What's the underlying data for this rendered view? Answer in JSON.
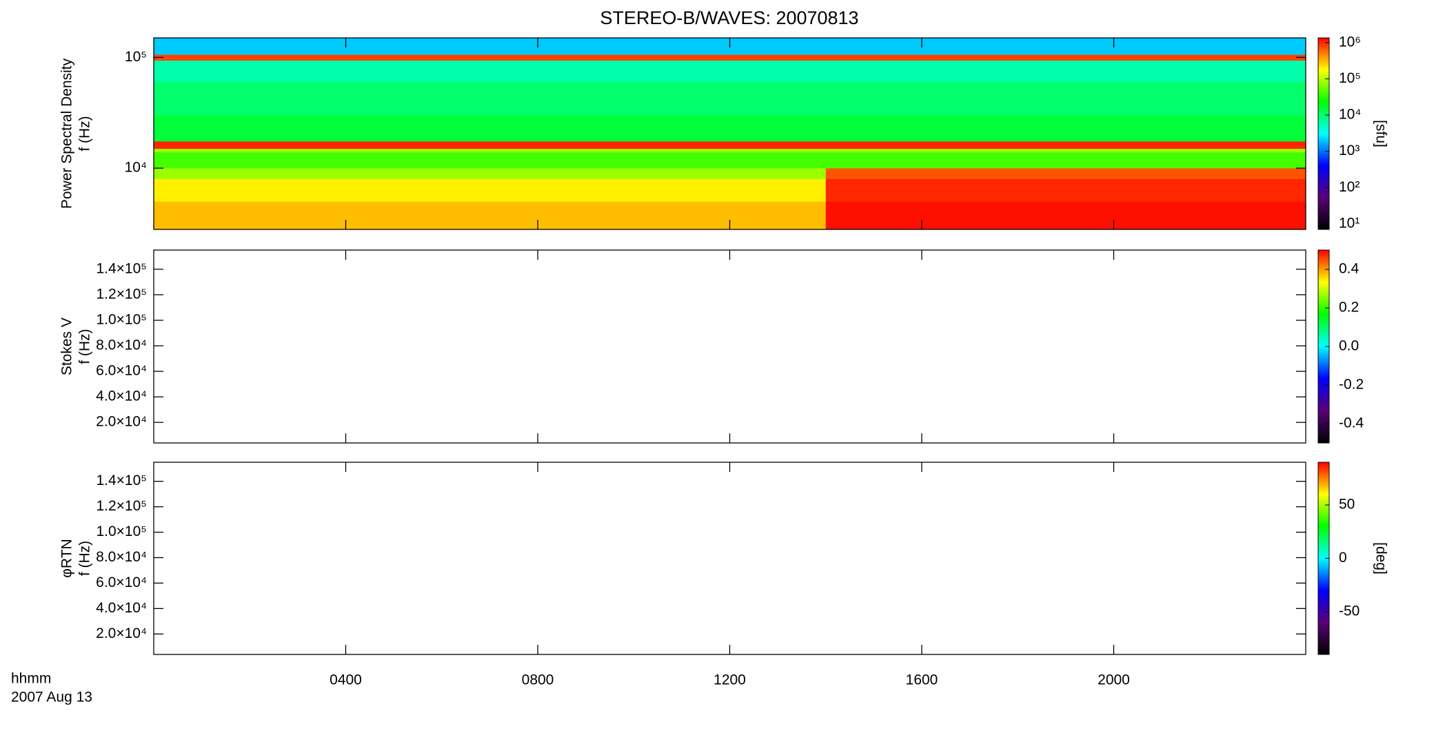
{
  "title": "STEREO-B/WAVES: 20070813",
  "time_label": "hhmm",
  "date_label": "2007 Aug 13",
  "colormap": [
    "#000000",
    "#5a0078",
    "#0000ff",
    "#00ffff",
    "#00ff00",
    "#ffff00",
    "#ff0000"
  ],
  "chart_data": [
    {
      "type": "heatmap",
      "ylabel": [
        "Power Spectral Density",
        "f (Hz)"
      ],
      "ylog": true,
      "ylim": [
        2800,
        150000
      ],
      "yticks": [
        {
          "value": 10000,
          "label": "10⁴"
        },
        {
          "value": 100000,
          "label": "10⁵"
        }
      ],
      "xlim": [
        0,
        24
      ],
      "xticks": [
        {
          "value": 4,
          "label": "0400"
        },
        {
          "value": 8,
          "label": "0800"
        },
        {
          "value": 12,
          "label": "1200"
        },
        {
          "value": 16,
          "label": "1600"
        },
        {
          "value": 20,
          "label": "2000"
        }
      ],
      "x_edges": [
        0,
        2,
        4,
        6,
        8,
        10,
        12,
        14,
        16,
        18,
        20,
        22,
        24
      ],
      "y_edges": [
        2800,
        5000,
        8000,
        10000,
        14000,
        15000,
        17500,
        30000,
        60000,
        94000,
        106000,
        150000
      ],
      "z": [
        [
          300000,
          300000,
          300000,
          300000,
          300000,
          300000,
          300000,
          1200000,
          1200000,
          1200000,
          1200000,
          1200000
        ],
        [
          200000,
          200000,
          200000,
          200000,
          200000,
          200000,
          200000,
          1000000,
          1000000,
          1000000,
          1000000,
          1000000
        ],
        [
          80000,
          80000,
          80000,
          80000,
          80000,
          80000,
          80000,
          700000,
          700000,
          700000,
          700000,
          700000
        ],
        [
          40000,
          40000,
          40000,
          40000,
          40000,
          40000,
          40000,
          40000,
          40000,
          40000,
          40000,
          40000
        ],
        [
          80000,
          80000,
          80000,
          80000,
          80000,
          80000,
          80000,
          80000,
          80000,
          80000,
          80000,
          80000
        ],
        [
          1000000,
          1000000,
          1000000,
          1000000,
          1000000,
          1000000,
          1000000,
          1000000,
          1000000,
          1000000,
          1000000,
          1000000
        ],
        [
          15000,
          15000,
          15000,
          15000,
          15000,
          15000,
          15000,
          15000,
          15000,
          15000,
          15000,
          15000
        ],
        [
          10000,
          10000,
          10000,
          10000,
          10000,
          10000,
          10000,
          10000,
          10000,
          10000,
          10000,
          10000
        ],
        [
          6000,
          6000,
          6000,
          6000,
          6000,
          6000,
          6000,
          6000,
          6000,
          6000,
          6000,
          6000
        ],
        [
          800000,
          800000,
          800000,
          800000,
          800000,
          800000,
          800000,
          800000,
          800000,
          800000,
          800000,
          800000
        ],
        [
          2000,
          2000,
          2000,
          2000,
          2000,
          2000,
          2000,
          2000,
          2000,
          2000,
          2000,
          2000
        ]
      ],
      "zlog": true,
      "zlim": [
        7,
        1350000
      ],
      "zticks": [
        {
          "value": 10,
          "label": "10¹"
        },
        {
          "value": 100,
          "label": "10²"
        },
        {
          "value": 1000,
          "label": "10³"
        },
        {
          "value": 10000,
          "label": "10⁴"
        },
        {
          "value": 100000,
          "label": "10⁵"
        },
        {
          "value": 1000000,
          "label": "10⁶"
        }
      ],
      "zlabel": "[sfu]"
    },
    {
      "type": "heatmap",
      "ylabel": [
        "Stokes V",
        "f (Hz)"
      ],
      "ylog": false,
      "ylim": [
        3900,
        155000
      ],
      "yticks": [
        {
          "value": 20000,
          "label": "2.0×10⁴"
        },
        {
          "value": 40000,
          "label": "4.0×10⁴"
        },
        {
          "value": 60000,
          "label": "6.0×10⁴"
        },
        {
          "value": 80000,
          "label": "8.0×10⁴"
        },
        {
          "value": 100000,
          "label": "1.0×10⁵"
        },
        {
          "value": 120000,
          "label": "1.2×10⁵"
        },
        {
          "value": 140000,
          "label": "1.4×10⁵"
        }
      ],
      "xlim": [
        0,
        24
      ],
      "xticks": [
        4,
        8,
        12,
        16,
        20
      ],
      "zlog": false,
      "zlim": [
        -0.5,
        0.5
      ],
      "zticks": [
        -0.4,
        -0.2,
        {
          "value": 0,
          "label": "0.0"
        },
        0.2,
        0.4
      ]
    },
    {
      "type": "heatmap",
      "ylabel": [
        "φRTN",
        "f (Hz)"
      ],
      "ylog": false,
      "ylim": [
        3900,
        155000
      ],
      "yticks": [
        {
          "value": 20000,
          "label": "2.0×10⁴"
        },
        {
          "value": 40000,
          "label": "4.0×10⁴"
        },
        {
          "value": 60000,
          "label": "6.0×10⁴"
        },
        {
          "value": 80000,
          "label": "8.0×10⁴"
        },
        {
          "value": 100000,
          "label": "1.0×10⁵"
        },
        {
          "value": 120000,
          "label": "1.2×10⁵"
        },
        {
          "value": 140000,
          "label": "1.4×10⁵"
        }
      ],
      "xlim": [
        0,
        24
      ],
      "xticks": [
        4,
        8,
        12,
        16,
        20
      ],
      "zlog": false,
      "zlim": [
        -90,
        90
      ],
      "zticks": [
        -50,
        0,
        50
      ],
      "zlabel": "[deg]"
    }
  ]
}
